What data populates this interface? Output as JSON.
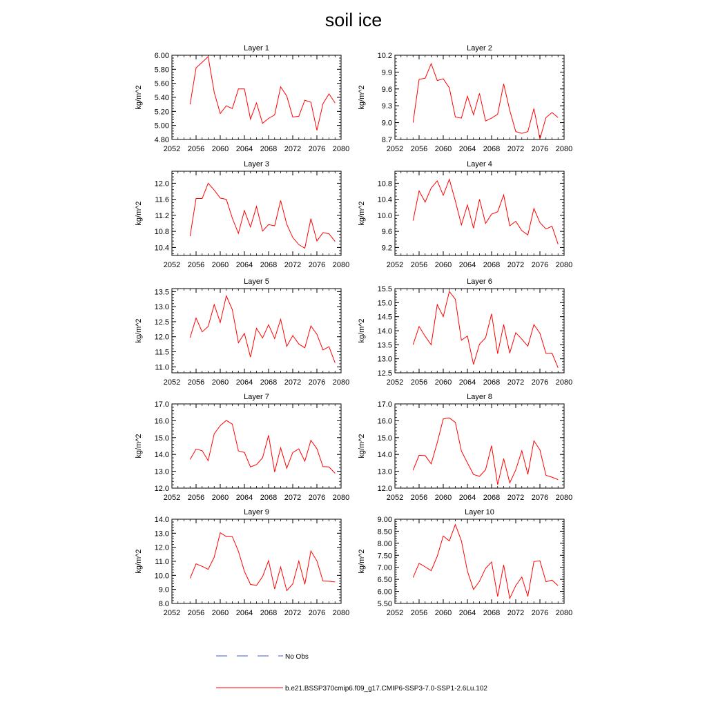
{
  "title": "soil ice",
  "colors": {
    "model": "#ff0000",
    "obs": "#3c5ad2",
    "axis": "#000000"
  },
  "legend": {
    "obs_label": "No Obs",
    "model_label": "b.e21.BSSP370cmip6.f09_g17.CMIP6-SSP3-7.0-SSP1-2.6Lu.102"
  },
  "chart_data": [
    {
      "type": "line",
      "title": "Layer 1",
      "ylabel": "kg/m^2",
      "xlim": [
        2052,
        2080
      ],
      "ylim": [
        4.8,
        6.0
      ],
      "xticks": [
        2052,
        2056,
        2060,
        2064,
        2068,
        2072,
        2076,
        2080
      ],
      "xtick_labels": [
        "2052",
        "2056",
        "2060",
        "2064",
        "2068",
        "2072",
        "2076",
        "2080"
      ],
      "yticks": [
        4.8,
        5.0,
        5.2,
        5.4,
        5.6,
        5.8,
        6.0
      ],
      "ytick_labels": [
        "4.80",
        "5.00",
        "5.20",
        "5.40",
        "5.60",
        "5.80",
        "6.00"
      ],
      "x": [
        2055,
        2056,
        2057,
        2058,
        2059,
        2060,
        2061,
        2062,
        2063,
        2064,
        2065,
        2066,
        2067,
        2068,
        2069,
        2070,
        2071,
        2072,
        2073,
        2074,
        2075,
        2076,
        2077,
        2078,
        2079
      ],
      "values": [
        5.3,
        5.82,
        5.9,
        5.98,
        5.47,
        5.17,
        5.28,
        5.24,
        5.52,
        5.52,
        5.09,
        5.32,
        5.03,
        5.1,
        5.15,
        5.55,
        5.42,
        5.12,
        5.13,
        5.36,
        5.33,
        4.93,
        5.31,
        5.45,
        5.32
      ]
    },
    {
      "type": "line",
      "title": "Layer 2",
      "ylabel": "kg/m^2",
      "xlim": [
        2052,
        2080
      ],
      "ylim": [
        8.7,
        10.2
      ],
      "xticks": [
        2052,
        2056,
        2060,
        2064,
        2068,
        2072,
        2076,
        2080
      ],
      "xtick_labels": [
        "2052",
        "2056",
        "2060",
        "2064",
        "2068",
        "2072",
        "2076",
        "2080"
      ],
      "yticks": [
        8.7,
        9.0,
        9.3,
        9.6,
        9.9,
        10.2
      ],
      "ytick_labels": [
        "8.7",
        "9.0",
        "9.3",
        "9.6",
        "9.9",
        "10.2"
      ],
      "x": [
        2055,
        2056,
        2057,
        2058,
        2059,
        2060,
        2061,
        2062,
        2063,
        2064,
        2065,
        2066,
        2067,
        2068,
        2069,
        2070,
        2071,
        2072,
        2073,
        2074,
        2075,
        2076,
        2077,
        2078,
        2079
      ],
      "values": [
        9.0,
        9.77,
        9.79,
        10.05,
        9.75,
        9.78,
        9.62,
        9.1,
        9.08,
        9.47,
        9.14,
        9.52,
        9.03,
        9.08,
        9.15,
        9.69,
        9.22,
        8.84,
        8.81,
        8.84,
        9.25,
        8.71,
        9.09,
        9.18,
        9.09
      ]
    },
    {
      "type": "line",
      "title": "Layer 3",
      "ylabel": "kg/m^2",
      "xlim": [
        2052,
        2080
      ],
      "ylim": [
        10.2,
        12.3
      ],
      "xticks": [
        2052,
        2056,
        2060,
        2064,
        2068,
        2072,
        2076,
        2080
      ],
      "xtick_labels": [
        "2052",
        "2056",
        "2060",
        "2064",
        "2068",
        "2072",
        "2076",
        "2080"
      ],
      "yticks": [
        10.4,
        10.8,
        11.2,
        11.6,
        12.0
      ],
      "ytick_labels": [
        "10.4",
        "10.8",
        "11.2",
        "11.6",
        "12.0"
      ],
      "x": [
        2055,
        2056,
        2057,
        2058,
        2059,
        2060,
        2061,
        2062,
        2063,
        2064,
        2065,
        2066,
        2067,
        2068,
        2069,
        2070,
        2071,
        2072,
        2073,
        2074,
        2075,
        2076,
        2077,
        2078,
        2079
      ],
      "values": [
        10.68,
        11.62,
        11.62,
        12.0,
        11.83,
        11.63,
        11.6,
        11.13,
        10.75,
        11.32,
        10.91,
        11.42,
        10.81,
        10.97,
        10.94,
        11.57,
        10.98,
        10.65,
        10.47,
        10.38,
        11.12,
        10.56,
        10.77,
        10.74,
        10.55
      ]
    },
    {
      "type": "line",
      "title": "Layer 4",
      "ylabel": "kg/m^2",
      "xlim": [
        2052,
        2080
      ],
      "ylim": [
        9.0,
        11.1
      ],
      "xticks": [
        2052,
        2056,
        2060,
        2064,
        2068,
        2072,
        2076,
        2080
      ],
      "xtick_labels": [
        "2052",
        "2056",
        "2060",
        "2064",
        "2068",
        "2072",
        "2076",
        "2080"
      ],
      "yticks": [
        9.2,
        9.6,
        10.0,
        10.4,
        10.8
      ],
      "ytick_labels": [
        "9.2",
        "9.6",
        "10.0",
        "10.4",
        "10.8"
      ],
      "x": [
        2055,
        2056,
        2057,
        2058,
        2059,
        2060,
        2061,
        2062,
        2063,
        2064,
        2065,
        2066,
        2067,
        2068,
        2069,
        2070,
        2071,
        2072,
        2073,
        2074,
        2075,
        2076,
        2077,
        2078,
        2079
      ],
      "values": [
        9.87,
        10.61,
        10.33,
        10.68,
        10.86,
        10.5,
        10.9,
        10.36,
        9.76,
        10.26,
        9.68,
        10.4,
        9.8,
        10.03,
        10.09,
        10.51,
        9.74,
        9.85,
        9.62,
        9.51,
        10.17,
        9.82,
        9.66,
        9.73,
        9.28
      ]
    },
    {
      "type": "line",
      "title": "Layer 5",
      "ylabel": "kg/m^2",
      "xlim": [
        2052,
        2080
      ],
      "ylim": [
        10.8,
        13.6
      ],
      "xticks": [
        2052,
        2056,
        2060,
        2064,
        2068,
        2072,
        2076,
        2080
      ],
      "xtick_labels": [
        "2052",
        "2056",
        "2060",
        "2064",
        "2068",
        "2072",
        "2076",
        "2080"
      ],
      "yticks": [
        11.0,
        11.5,
        12.0,
        12.5,
        13.0,
        13.5
      ],
      "ytick_labels": [
        "11.0",
        "11.5",
        "12.0",
        "12.5",
        "13.0",
        "13.5"
      ],
      "x": [
        2055,
        2056,
        2057,
        2058,
        2059,
        2060,
        2061,
        2062,
        2063,
        2064,
        2065,
        2066,
        2067,
        2068,
        2069,
        2070,
        2071,
        2072,
        2073,
        2074,
        2075,
        2076,
        2077,
        2078,
        2079
      ],
      "values": [
        11.97,
        12.62,
        12.16,
        12.34,
        13.07,
        12.47,
        13.36,
        12.9,
        11.8,
        12.11,
        11.32,
        12.28,
        11.96,
        12.4,
        11.94,
        12.58,
        11.68,
        12.04,
        11.76,
        11.63,
        12.36,
        12.08,
        11.56,
        11.67,
        11.13
      ]
    },
    {
      "type": "line",
      "title": "Layer 6",
      "ylabel": "kg/m^2",
      "xlim": [
        2052,
        2080
      ],
      "ylim": [
        12.5,
        15.5
      ],
      "xticks": [
        2052,
        2056,
        2060,
        2064,
        2068,
        2072,
        2076,
        2080
      ],
      "xtick_labels": [
        "2052",
        "2056",
        "2060",
        "2064",
        "2068",
        "2072",
        "2076",
        "2080"
      ],
      "yticks": [
        12.5,
        13.0,
        13.5,
        14.0,
        14.5,
        15.0,
        15.5
      ],
      "ytick_labels": [
        "12.5",
        "13.0",
        "13.5",
        "14.0",
        "14.5",
        "15.0",
        "15.5"
      ],
      "x": [
        2055,
        2056,
        2057,
        2058,
        2059,
        2060,
        2061,
        2062,
        2063,
        2064,
        2065,
        2066,
        2067,
        2068,
        2069,
        2070,
        2071,
        2072,
        2073,
        2074,
        2075,
        2076,
        2077,
        2078,
        2079
      ],
      "values": [
        13.5,
        14.15,
        13.8,
        13.5,
        14.93,
        14.5,
        15.4,
        15.12,
        13.66,
        13.81,
        12.8,
        13.52,
        13.75,
        14.6,
        13.18,
        14.22,
        13.2,
        13.93,
        13.7,
        13.45,
        14.22,
        13.91,
        13.19,
        13.2,
        12.68
      ]
    },
    {
      "type": "line",
      "title": "Layer 7",
      "ylabel": "kg/m^2",
      "xlim": [
        2052,
        2080
      ],
      "ylim": [
        12.0,
        17.0
      ],
      "xticks": [
        2052,
        2056,
        2060,
        2064,
        2068,
        2072,
        2076,
        2080
      ],
      "xtick_labels": [
        "2052",
        "2056",
        "2060",
        "2064",
        "2068",
        "2072",
        "2076",
        "2080"
      ],
      "yticks": [
        12.0,
        13.0,
        14.0,
        15.0,
        16.0,
        17.0
      ],
      "ytick_labels": [
        "12.0",
        "13.0",
        "14.0",
        "15.0",
        "16.0",
        "17.0"
      ],
      "x": [
        2055,
        2056,
        2057,
        2058,
        2059,
        2060,
        2061,
        2062,
        2063,
        2064,
        2065,
        2066,
        2067,
        2068,
        2069,
        2070,
        2071,
        2072,
        2073,
        2074,
        2075,
        2076,
        2077,
        2078,
        2079
      ],
      "values": [
        13.7,
        14.32,
        14.22,
        13.63,
        15.23,
        15.71,
        16.02,
        15.8,
        14.21,
        14.12,
        13.26,
        13.4,
        13.8,
        15.14,
        12.96,
        14.39,
        13.18,
        14.11,
        14.33,
        13.6,
        14.84,
        14.34,
        13.28,
        13.26,
        12.88
      ]
    },
    {
      "type": "line",
      "title": "Layer 8",
      "ylabel": "kg/m^2",
      "xlim": [
        2052,
        2080
      ],
      "ylim": [
        12.0,
        17.0
      ],
      "xticks": [
        2052,
        2056,
        2060,
        2064,
        2068,
        2072,
        2076,
        2080
      ],
      "xtick_labels": [
        "2052",
        "2056",
        "2060",
        "2064",
        "2068",
        "2072",
        "2076",
        "2080"
      ],
      "yticks": [
        12.0,
        13.0,
        14.0,
        15.0,
        16.0,
        17.0
      ],
      "ytick_labels": [
        "12.0",
        "13.0",
        "14.0",
        "15.0",
        "16.0",
        "17.0"
      ],
      "x": [
        2055,
        2056,
        2057,
        2058,
        2059,
        2060,
        2061,
        2062,
        2063,
        2064,
        2065,
        2066,
        2067,
        2068,
        2069,
        2070,
        2071,
        2072,
        2073,
        2074,
        2075,
        2076,
        2077,
        2078,
        2079
      ],
      "values": [
        13.06,
        13.95,
        13.93,
        13.44,
        14.7,
        16.11,
        16.17,
        15.9,
        14.2,
        13.5,
        12.81,
        12.7,
        13.09,
        14.52,
        12.21,
        13.75,
        12.31,
        13.08,
        14.22,
        12.82,
        14.81,
        14.27,
        12.76,
        12.65,
        12.51
      ]
    },
    {
      "type": "line",
      "title": "Layer 9",
      "ylabel": "kg/m^2",
      "xlim": [
        2052,
        2080
      ],
      "ylim": [
        8.0,
        14.0
      ],
      "xticks": [
        2052,
        2056,
        2060,
        2064,
        2068,
        2072,
        2076,
        2080
      ],
      "xtick_labels": [
        "2052",
        "2056",
        "2060",
        "2064",
        "2068",
        "2072",
        "2076",
        "2080"
      ],
      "yticks": [
        8.0,
        9.0,
        10.0,
        11.0,
        12.0,
        13.0,
        14.0
      ],
      "ytick_labels": [
        "8.0",
        "9.0",
        "10.0",
        "11.0",
        "12.0",
        "13.0",
        "14.0"
      ],
      "x": [
        2055,
        2056,
        2057,
        2058,
        2059,
        2060,
        2061,
        2062,
        2063,
        2064,
        2065,
        2066,
        2067,
        2068,
        2069,
        2070,
        2071,
        2072,
        2073,
        2074,
        2075,
        2076,
        2077,
        2078,
        2079
      ],
      "values": [
        9.79,
        10.82,
        10.64,
        10.43,
        11.3,
        13.04,
        12.76,
        12.76,
        11.72,
        10.29,
        9.35,
        9.29,
        9.91,
        11.05,
        9.03,
        10.59,
        8.91,
        9.39,
        11.02,
        9.36,
        11.74,
        11.03,
        9.6,
        9.58,
        9.53
      ]
    },
    {
      "type": "line",
      "title": "Layer 10",
      "ylabel": "kg/m^2",
      "xlim": [
        2052,
        2080
      ],
      "ylim": [
        5.5,
        9.0
      ],
      "xticks": [
        2052,
        2056,
        2060,
        2064,
        2068,
        2072,
        2076,
        2080
      ],
      "xtick_labels": [
        "2052",
        "2056",
        "2060",
        "2064",
        "2068",
        "2072",
        "2076",
        "2080"
      ],
      "yticks": [
        5.5,
        6.0,
        6.5,
        7.0,
        7.5,
        8.0,
        8.5,
        9.0
      ],
      "ytick_labels": [
        "5.50",
        "6.00",
        "6.50",
        "7.00",
        "7.50",
        "8.00",
        "8.50",
        "9.00"
      ],
      "x": [
        2055,
        2056,
        2057,
        2058,
        2059,
        2060,
        2061,
        2062,
        2063,
        2064,
        2065,
        2066,
        2067,
        2068,
        2069,
        2070,
        2071,
        2072,
        2073,
        2074,
        2075,
        2076,
        2077,
        2078,
        2079
      ],
      "values": [
        6.58,
        7.17,
        7.02,
        6.86,
        7.46,
        8.3,
        8.1,
        8.78,
        8.1,
        6.84,
        6.08,
        6.42,
        6.96,
        7.22,
        5.79,
        7.1,
        5.71,
        6.24,
        6.6,
        5.79,
        7.24,
        7.27,
        6.4,
        6.47,
        6.24
      ]
    }
  ]
}
